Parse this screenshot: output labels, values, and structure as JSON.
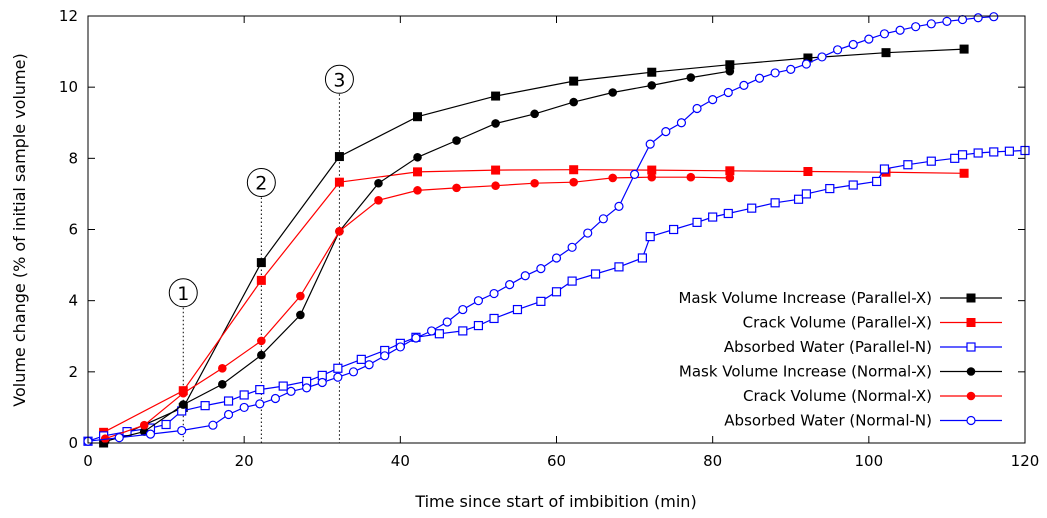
{
  "chart_data": {
    "type": "line",
    "title": "",
    "xlabel": "Time since start of imbibition (min)",
    "ylabel": "Volume change (% of initial sample volume)",
    "xlim": [
      0,
      120
    ],
    "ylim": [
      0,
      12
    ],
    "xticks": [
      "0",
      "20",
      "40",
      "60",
      "80",
      "100",
      "120"
    ],
    "yticks": [
      "0",
      "2",
      "4",
      "6",
      "8",
      "10",
      "12"
    ],
    "grid": false,
    "legend_position": "bottom-right",
    "annotations": [
      {
        "label": "1",
        "x": 12.2,
        "top_y": 3.8
      },
      {
        "label": "2",
        "x": 22.2,
        "top_y": 6.9
      },
      {
        "label": "3",
        "x": 32.2,
        "top_y": 9.8
      }
    ],
    "series": [
      {
        "name": "Mask Volume Increase (Parallel-X)",
        "color": "#000000",
        "marker": "square-filled",
        "x": [
          2,
          12.2,
          22.2,
          32.2,
          42.2,
          52.2,
          62.2,
          72.2,
          82.2,
          92.2,
          102.2,
          112.2
        ],
        "y": [
          0,
          1.0,
          5.07,
          8.05,
          9.17,
          9.75,
          10.17,
          10.42,
          10.63,
          10.82,
          10.97,
          11.07
        ]
      },
      {
        "name": "Crack Volume (Parallel-X)",
        "color": "#ff0000",
        "marker": "square-filled",
        "x": [
          2,
          12.2,
          22.2,
          32.2,
          42.2,
          52.2,
          62.2,
          72.2,
          82.2,
          92.2,
          102.2,
          112.2
        ],
        "y": [
          0.3,
          1.47,
          4.57,
          7.33,
          7.62,
          7.67,
          7.68,
          7.67,
          7.65,
          7.63,
          7.61,
          7.58
        ]
      },
      {
        "name": "Absorbed Water (Parallel-N)",
        "color": "#0000ff",
        "marker": "square-open",
        "x": [
          0,
          2,
          5,
          8,
          10,
          12,
          15,
          18,
          20,
          22,
          25,
          28,
          30,
          32,
          35,
          38,
          40,
          42,
          45,
          48,
          50,
          52,
          55,
          58,
          60,
          62,
          65,
          68,
          71,
          72,
          75,
          78,
          80,
          82,
          85,
          88,
          91,
          92,
          95,
          98,
          101,
          102,
          105,
          108,
          111,
          112,
          114,
          116,
          118,
          120
        ],
        "y": [
          0.05,
          0.2,
          0.32,
          0.42,
          0.52,
          0.9,
          1.05,
          1.18,
          1.35,
          1.5,
          1.6,
          1.73,
          1.9,
          2.1,
          2.35,
          2.6,
          2.8,
          2.97,
          3.07,
          3.15,
          3.3,
          3.5,
          3.75,
          3.98,
          4.25,
          4.55,
          4.75,
          4.95,
          5.2,
          5.8,
          6.0,
          6.2,
          6.35,
          6.45,
          6.6,
          6.75,
          6.85,
          7.0,
          7.15,
          7.25,
          7.35,
          7.7,
          7.82,
          7.92,
          8.0,
          8.1,
          8.15,
          8.18,
          8.2,
          8.22
        ]
      },
      {
        "name": "Mask Volume Increase (Normal-X)",
        "color": "#000000",
        "marker": "circle-filled",
        "x": [
          2.2,
          7.2,
          12.2,
          17.2,
          22.2,
          27.2,
          32.2,
          37.2,
          42.2,
          47.2,
          52.2,
          57.2,
          62.2,
          67.2,
          72.2,
          77.2,
          82.2
        ],
        "y": [
          0.05,
          0.32,
          1.08,
          1.65,
          2.47,
          3.6,
          5.95,
          7.3,
          8.03,
          8.5,
          8.98,
          9.25,
          9.58,
          9.85,
          10.05,
          10.27,
          10.45
        ]
      },
      {
        "name": "Crack Volume (Normal-X)",
        "color": "#ff0000",
        "marker": "circle-filled",
        "x": [
          2.2,
          7.2,
          12.2,
          17.2,
          22.2,
          27.2,
          32.2,
          37.2,
          42.2,
          47.2,
          52.2,
          57.2,
          62.2,
          67.2,
          72.2,
          77.2,
          82.2
        ],
        "y": [
          0.12,
          0.5,
          1.4,
          2.1,
          2.87,
          4.13,
          5.95,
          6.82,
          7.1,
          7.17,
          7.23,
          7.3,
          7.33,
          7.45,
          7.47,
          7.47,
          7.45
        ],
        "y_values_note": ""
      },
      {
        "name": "Absorbed Water (Normal-N)",
        "color": "#0000ff",
        "marker": "circle-open",
        "x": [
          0,
          4,
          8,
          12,
          16,
          18,
          20,
          22,
          24,
          26,
          28,
          30,
          32,
          34,
          36,
          38,
          40,
          42,
          44,
          46,
          48,
          50,
          52,
          54,
          56,
          58,
          60,
          62,
          64,
          66,
          68,
          70,
          72,
          74,
          76,
          78,
          80,
          82,
          84,
          86,
          88,
          90,
          92,
          94,
          96,
          98,
          100,
          102,
          104,
          106,
          108,
          110,
          112,
          114,
          116
        ],
        "y": [
          0.05,
          0.15,
          0.25,
          0.35,
          0.5,
          0.8,
          1.0,
          1.1,
          1.25,
          1.45,
          1.55,
          1.7,
          1.85,
          2.0,
          2.2,
          2.45,
          2.7,
          2.95,
          3.15,
          3.4,
          3.75,
          4.0,
          4.2,
          4.45,
          4.7,
          4.9,
          5.2,
          5.5,
          5.9,
          6.3,
          6.65,
          7.55,
          8.4,
          8.75,
          9.0,
          9.4,
          9.65,
          9.85,
          10.05,
          10.25,
          10.4,
          10.5,
          10.65,
          10.85,
          11.05,
          11.2,
          11.35,
          11.5,
          11.6,
          11.7,
          11.78,
          11.85,
          11.9,
          11.95,
          11.98
        ]
      }
    ]
  }
}
